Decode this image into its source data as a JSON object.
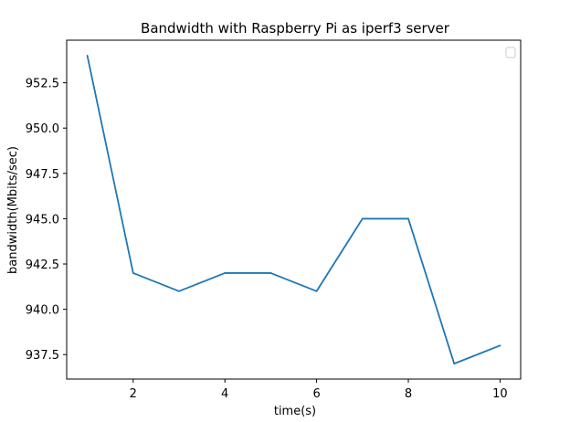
{
  "chart_data": {
    "type": "line",
    "title": "Bandwidth with Raspberry Pi as iperf3 server",
    "xlabel": "time(s)",
    "ylabel": "bandwidth(Mbits/sec)",
    "x": [
      1,
      2,
      3,
      4,
      5,
      6,
      7,
      8,
      9,
      10
    ],
    "series": [
      {
        "values": [
          954,
          942,
          941,
          942,
          942,
          941,
          945,
          945,
          937,
          938
        ]
      }
    ],
    "xlim": [
      0.55,
      10.45
    ],
    "ylim": [
      936.15,
      954.85
    ],
    "xticks": [
      2,
      4,
      6,
      8,
      10
    ],
    "yticks": [
      937.5,
      940.0,
      942.5,
      945.0,
      947.5,
      950.0,
      952.5
    ],
    "xtick_labels": [
      "2",
      "4",
      "6",
      "8",
      "10"
    ],
    "ytick_labels": [
      "937.5",
      "940.0",
      "942.5",
      "945.0",
      "947.5",
      "950.0",
      "952.5"
    ],
    "grid": false,
    "legend": {
      "placement": "top-right",
      "entries": []
    },
    "colors": {
      "line": "#1f77b4",
      "axes": "#000000",
      "legend_border": "#cccccc"
    }
  }
}
